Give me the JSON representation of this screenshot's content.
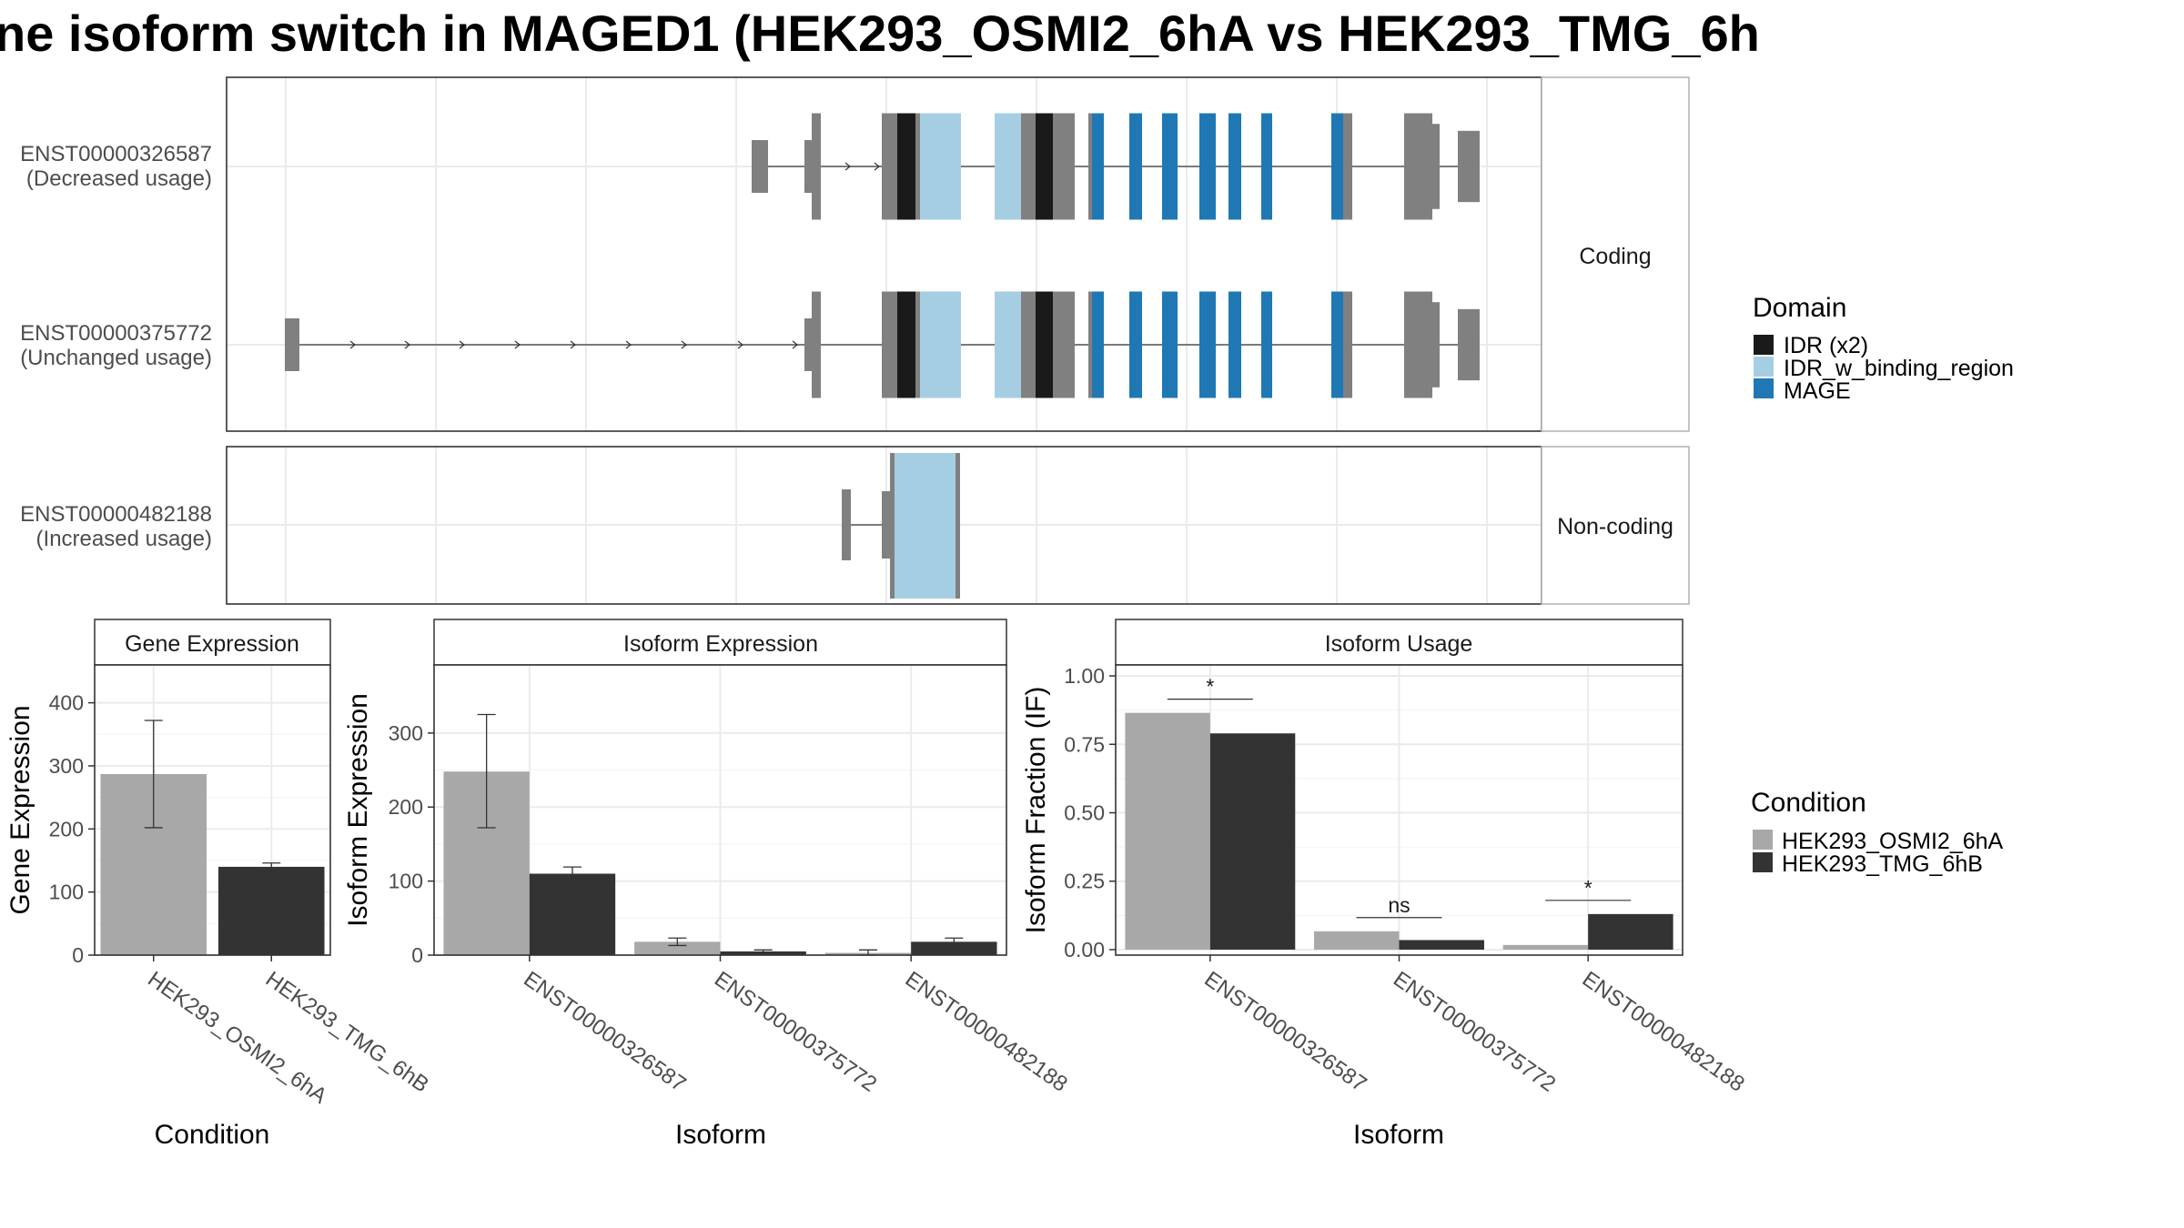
{
  "title": "ne isoform switch in MAGED1 (HEK293_OSMI2_6hA vs HEK293_TMG_6h",
  "isoform_structure": {
    "groups": [
      {
        "label": "Coding",
        "isoforms": [
          {
            "id": "ENST00000326587",
            "usage": "(Decreased usage)"
          },
          {
            "id": "ENST00000375772",
            "usage": "(Unchanged usage)"
          }
        ]
      },
      {
        "label": "Non-coding",
        "isoforms": [
          {
            "id": "ENST00000482188",
            "usage": "(Increased usage)"
          }
        ]
      }
    ],
    "domain_legend": {
      "title": "Domain",
      "items": [
        {
          "name": "IDR (x2)",
          "color": "#1a1a1a"
        },
        {
          "name": "IDR_w_binding_region",
          "color": "#a6cee3"
        },
        {
          "name": "MAGE",
          "color": "#1f78b4"
        }
      ]
    },
    "exon_color": "#808080"
  },
  "condition_legend": {
    "title": "Condition",
    "items": [
      {
        "name": "HEK293_OSMI2_6hA",
        "color": "#a8a8a8"
      },
      {
        "name": "HEK293_TMG_6hB",
        "color": "#333333"
      }
    ]
  },
  "chart_data": [
    {
      "type": "bar",
      "title": "Gene Expression",
      "xlabel": "Condition",
      "ylabel": "Gene Expression",
      "categories": [
        "HEK293_OSMI2_6hA",
        "HEK293_TMG_6hB"
      ],
      "values": [
        287,
        140
      ],
      "error_low": [
        202,
        134
      ],
      "error_high": [
        372,
        146
      ],
      "colors": [
        "#a8a8a8",
        "#333333"
      ],
      "ylim": [
        0,
        460
      ],
      "yticks": [
        0,
        100,
        200,
        300,
        400
      ],
      "grid": true
    },
    {
      "type": "bar",
      "title": "Isoform Expression",
      "xlabel": "Isoform",
      "ylabel": "Isoform Expression",
      "categories": [
        "ENST00000326587",
        "ENST00000375772",
        "ENST00000482188"
      ],
      "series": [
        {
          "name": "HEK293_OSMI2_6hA",
          "values": [
            248,
            18,
            3
          ],
          "error_low": [
            172,
            13,
            0
          ],
          "error_high": [
            325,
            23,
            7
          ]
        },
        {
          "name": "HEK293_TMG_6hB",
          "values": [
            110,
            5,
            18
          ],
          "error_low": [
            101,
            3,
            13
          ],
          "error_high": [
            119,
            7,
            23
          ]
        }
      ],
      "ylim": [
        0,
        392
      ],
      "yticks": [
        0,
        100,
        200,
        300
      ],
      "grid": true
    },
    {
      "type": "bar",
      "title": "Isoform Usage",
      "xlabel": "Isoform",
      "ylabel": "Isoform Fraction (IF)",
      "categories": [
        "ENST00000326587",
        "ENST00000375772",
        "ENST00000482188"
      ],
      "series": [
        {
          "name": "HEK293_OSMI2_6hA",
          "values": [
            0.865,
            0.067,
            0.017
          ]
        },
        {
          "name": "HEK293_TMG_6hB",
          "values": [
            0.79,
            0.035,
            0.13
          ]
        }
      ],
      "significance": [
        "*",
        "ns",
        "*"
      ],
      "ylim": [
        -0.02,
        1.04
      ],
      "yticks": [
        "0.00",
        "0.25",
        "0.50",
        "0.75",
        "1.00"
      ],
      "grid": true
    }
  ]
}
